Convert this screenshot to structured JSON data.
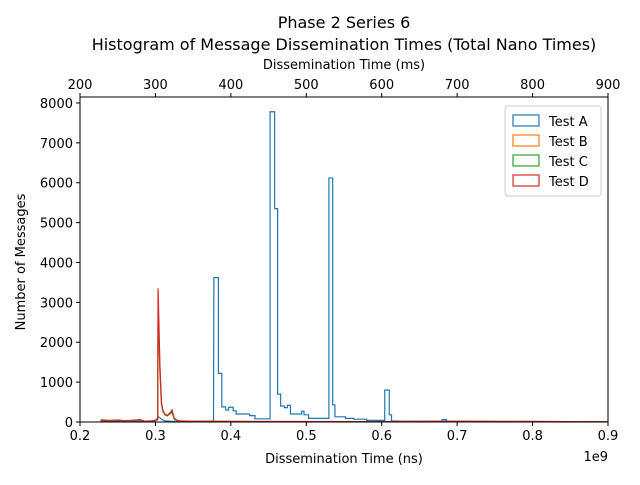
{
  "chart_data": {
    "type": "histogram",
    "title": "Phase 2 Series 6",
    "subtitle": "Histogram of Message Dissemination Times (Total Nano Times)",
    "xlabel": "Dissemination Time (ns)",
    "x_offset_label": "1e9",
    "ylabel": "Number of Messages",
    "secondary_xlabel": "Dissemination Time (ms)",
    "xlim": [
      0.2,
      0.9
    ],
    "ylim": [
      0,
      8150
    ],
    "x_ticks": [
      "0.2",
      "0.3",
      "0.4",
      "0.5",
      "0.6",
      "0.7",
      "0.8",
      "0.9"
    ],
    "x_tick_values": [
      0.2,
      0.3,
      0.4,
      0.5,
      0.6,
      0.7,
      0.8,
      0.9
    ],
    "y_ticks": [
      "0",
      "1000",
      "2000",
      "3000",
      "4000",
      "5000",
      "6000",
      "7000",
      "8000"
    ],
    "y_tick_values": [
      0,
      1000,
      2000,
      3000,
      4000,
      5000,
      6000,
      7000,
      8000
    ],
    "secondary_x_ticks": [
      "200",
      "300",
      "400",
      "500",
      "600",
      "700",
      "800",
      "900"
    ],
    "secondary_x_tick_values": [
      0.2,
      0.3,
      0.4,
      0.5,
      0.6,
      0.7,
      0.8,
      0.9
    ],
    "legend_position": "top-right",
    "grid": false,
    "series": [
      {
        "name": "Test A",
        "color": "#1f77b4",
        "points": [
          [
            0.228,
            0
          ],
          [
            0.228,
            30
          ],
          [
            0.24,
            20
          ],
          [
            0.26,
            15
          ],
          [
            0.28,
            20
          ],
          [
            0.3,
            30
          ],
          [
            0.304,
            130
          ],
          [
            0.309,
            60
          ],
          [
            0.312,
            30
          ],
          [
            0.32,
            20
          ],
          [
            0.333,
            15
          ],
          [
            0.35,
            10
          ],
          [
            0.37,
            15
          ],
          [
            0.377,
            30
          ],
          [
            0.3775,
            3620
          ],
          [
            0.3835,
            3620
          ],
          [
            0.3835,
            1220
          ],
          [
            0.388,
            1220
          ],
          [
            0.388,
            380
          ],
          [
            0.393,
            380
          ],
          [
            0.393,
            300
          ],
          [
            0.397,
            300
          ],
          [
            0.397,
            370
          ],
          [
            0.403,
            370
          ],
          [
            0.403,
            280
          ],
          [
            0.407,
            280
          ],
          [
            0.407,
            200
          ],
          [
            0.425,
            200
          ],
          [
            0.425,
            160
          ],
          [
            0.432,
            160
          ],
          [
            0.432,
            80
          ],
          [
            0.452,
            80
          ],
          [
            0.452,
            7780
          ],
          [
            0.458,
            7780
          ],
          [
            0.458,
            5350
          ],
          [
            0.462,
            5350
          ],
          [
            0.462,
            700
          ],
          [
            0.466,
            700
          ],
          [
            0.466,
            400
          ],
          [
            0.471,
            400
          ],
          [
            0.471,
            360
          ],
          [
            0.475,
            360
          ],
          [
            0.475,
            420
          ],
          [
            0.479,
            420
          ],
          [
            0.479,
            200
          ],
          [
            0.494,
            200
          ],
          [
            0.494,
            270
          ],
          [
            0.497,
            270
          ],
          [
            0.497,
            180
          ],
          [
            0.503,
            180
          ],
          [
            0.503,
            90
          ],
          [
            0.53,
            90
          ],
          [
            0.53,
            6120
          ],
          [
            0.535,
            6120
          ],
          [
            0.535,
            430
          ],
          [
            0.538,
            430
          ],
          [
            0.538,
            130
          ],
          [
            0.552,
            130
          ],
          [
            0.552,
            90
          ],
          [
            0.563,
            90
          ],
          [
            0.563,
            70
          ],
          [
            0.58,
            70
          ],
          [
            0.58,
            40
          ],
          [
            0.604,
            40
          ],
          [
            0.604,
            800
          ],
          [
            0.61,
            800
          ],
          [
            0.61,
            180
          ],
          [
            0.613,
            180
          ],
          [
            0.613,
            30
          ],
          [
            0.63,
            20
          ],
          [
            0.68,
            20
          ],
          [
            0.68,
            60
          ],
          [
            0.686,
            60
          ],
          [
            0.686,
            15
          ],
          [
            0.75,
            10
          ],
          [
            0.9,
            10
          ],
          [
            0.9,
            0
          ]
        ]
      },
      {
        "name": "Test B",
        "color": "#ff7f0e",
        "points": [
          [
            0.228,
            0
          ],
          [
            0.228,
            60
          ],
          [
            0.24,
            40
          ],
          [
            0.25,
            50
          ],
          [
            0.26,
            30
          ],
          [
            0.27,
            40
          ],
          [
            0.28,
            60
          ],
          [
            0.285,
            20
          ],
          [
            0.295,
            30
          ],
          [
            0.303,
            60
          ],
          [
            0.3035,
            2550
          ],
          [
            0.306,
            1200
          ],
          [
            0.308,
            420
          ],
          [
            0.31,
            250
          ],
          [
            0.313,
            170
          ],
          [
            0.316,
            150
          ],
          [
            0.319,
            210
          ],
          [
            0.322,
            260
          ],
          [
            0.325,
            80
          ],
          [
            0.33,
            30
          ],
          [
            0.35,
            20
          ],
          [
            0.4,
            15
          ],
          [
            0.6,
            10
          ],
          [
            0.7,
            15
          ],
          [
            0.8,
            10
          ],
          [
            0.9,
            5
          ],
          [
            0.9,
            0
          ]
        ]
      },
      {
        "name": "Test C",
        "color": "#2ca02c",
        "points": [
          [
            0.228,
            0
          ],
          [
            0.228,
            50
          ],
          [
            0.24,
            35
          ],
          [
            0.25,
            45
          ],
          [
            0.26,
            30
          ],
          [
            0.27,
            40
          ],
          [
            0.28,
            50
          ],
          [
            0.285,
            20
          ],
          [
            0.295,
            25
          ],
          [
            0.303,
            50
          ],
          [
            0.3035,
            2850
          ],
          [
            0.306,
            1300
          ],
          [
            0.308,
            460
          ],
          [
            0.31,
            260
          ],
          [
            0.313,
            180
          ],
          [
            0.316,
            160
          ],
          [
            0.319,
            200
          ],
          [
            0.322,
            240
          ],
          [
            0.325,
            70
          ],
          [
            0.33,
            25
          ],
          [
            0.35,
            15
          ],
          [
            0.4,
            10
          ],
          [
            0.6,
            10
          ],
          [
            0.7,
            15
          ],
          [
            0.8,
            10
          ],
          [
            0.9,
            5
          ],
          [
            0.9,
            0
          ]
        ]
      },
      {
        "name": "Test D",
        "color": "#d62728",
        "points": [
          [
            0.228,
            0
          ],
          [
            0.228,
            40
          ],
          [
            0.24,
            30
          ],
          [
            0.25,
            50
          ],
          [
            0.26,
            30
          ],
          [
            0.27,
            40
          ],
          [
            0.28,
            60
          ],
          [
            0.285,
            20
          ],
          [
            0.295,
            25
          ],
          [
            0.303,
            60
          ],
          [
            0.3035,
            3350
          ],
          [
            0.306,
            1400
          ],
          [
            0.308,
            500
          ],
          [
            0.31,
            280
          ],
          [
            0.313,
            190
          ],
          [
            0.316,
            170
          ],
          [
            0.319,
            220
          ],
          [
            0.322,
            300
          ],
          [
            0.325,
            90
          ],
          [
            0.33,
            30
          ],
          [
            0.35,
            20
          ],
          [
            0.4,
            15
          ],
          [
            0.6,
            10
          ],
          [
            0.7,
            20
          ],
          [
            0.8,
            15
          ],
          [
            0.9,
            5
          ],
          [
            0.9,
            0
          ]
        ]
      }
    ]
  }
}
